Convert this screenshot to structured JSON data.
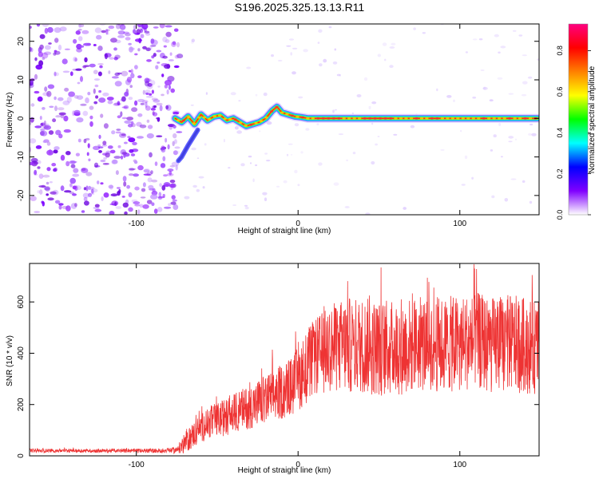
{
  "title": "S196.2025.325.13.13.R11",
  "colors": {
    "snr_line": "#ee3333",
    "ridge": "#ff2222",
    "noise": "#8a2be2"
  },
  "chart_data": [
    {
      "type": "heatmap",
      "xlabel": "Height of straight line (km)",
      "ylabel": "Frequency (Hz)",
      "xlim": [
        -166,
        149
      ],
      "ylim": [
        -25,
        24.5
      ],
      "x_ticks": [
        {
          "value": -100,
          "label": "-100"
        },
        {
          "value": 0,
          "label": "0"
        },
        {
          "value": 100,
          "label": "100"
        }
      ],
      "y_ticks": [
        {
          "value": 20,
          "label": "20"
        },
        {
          "value": 10,
          "label": "10"
        },
        {
          "value": 0,
          "label": "0"
        },
        {
          "value": -10,
          "label": "-10"
        },
        {
          "value": -20,
          "label": "-20"
        }
      ],
      "colorbar": {
        "label": "Normalized spectral amplitude",
        "range": [
          0,
          0.93
        ],
        "ticks": [
          {
            "value": 0.0,
            "label": "0.0"
          },
          {
            "value": 0.2,
            "label": "0.2"
          },
          {
            "value": 0.4,
            "label": "0.4"
          },
          {
            "value": 0.6,
            "label": "0.6"
          },
          {
            "value": 0.8,
            "label": "0.8"
          }
        ],
        "stops": [
          "#ffffff",
          "#8000ff",
          "#0000ff",
          "#00ffff",
          "#00ff00",
          "#ffff00",
          "#ff8000",
          "#ff0000",
          "#ff0080"
        ]
      },
      "noise_region_x": [
        -166,
        -76
      ],
      "ridge": {
        "x": [
          -76,
          -72,
          -68,
          -64,
          -60,
          -56,
          -52,
          -48,
          -44,
          -40,
          -36,
          -32,
          -28,
          -24,
          -20,
          -16,
          -13,
          -10,
          -6,
          -2,
          2,
          6,
          10,
          30,
          60,
          90,
          120,
          148
        ],
        "y": [
          0,
          -1,
          0.5,
          -1.5,
          1,
          -0.5,
          0.5,
          0.8,
          -0.5,
          0,
          -1,
          -2,
          -1.5,
          -1,
          0,
          2,
          3,
          1.5,
          1,
          0.5,
          0.3,
          0,
          0,
          0,
          0,
          0,
          0,
          0
        ]
      },
      "tail": {
        "x": [
          -62,
          -68,
          -72,
          -74
        ],
        "y": [
          -3,
          -7,
          -10,
          -11
        ]
      }
    },
    {
      "type": "line",
      "xlabel": "Height of straight line (km)",
      "ylabel": "SNR (10 * v/v)",
      "xlim": [
        -166,
        149
      ],
      "ylim": [
        0,
        750
      ],
      "x_ticks": [
        {
          "value": -100,
          "label": "-100"
        },
        {
          "value": 0,
          "label": "0"
        },
        {
          "value": 100,
          "label": "100"
        }
      ],
      "y_ticks": [
        {
          "value": 0,
          "label": "0"
        },
        {
          "value": 200,
          "label": "200"
        },
        {
          "value": 400,
          "label": "400"
        },
        {
          "value": 600,
          "label": "600"
        }
      ],
      "series": [
        {
          "name": "SNR",
          "x": [
            -166,
            -140,
            -110,
            -85,
            -75,
            -70,
            -65,
            -60,
            -55,
            -50,
            -45,
            -40,
            -35,
            -30,
            -25,
            -20,
            -15,
            -10,
            -5,
            0,
            5,
            10,
            15,
            20,
            25,
            30,
            40,
            50,
            60,
            70,
            80,
            90,
            100,
            110,
            120,
            130,
            140,
            149
          ],
          "y_mean": [
            20,
            20,
            20,
            20,
            22,
            50,
            80,
            110,
            130,
            140,
            150,
            165,
            180,
            190,
            205,
            220,
            235,
            250,
            265,
            300,
            345,
            380,
            400,
            420,
            425,
            430,
            430,
            420,
            420,
            430,
            440,
            430,
            440,
            450,
            430,
            440,
            430,
            420
          ],
          "y_spread": [
            8,
            8,
            8,
            10,
            14,
            45,
            55,
            65,
            70,
            75,
            80,
            85,
            90,
            95,
            100,
            110,
            115,
            120,
            130,
            140,
            160,
            170,
            180,
            190,
            200,
            210,
            210,
            210,
            210,
            210,
            210,
            210,
            210,
            210,
            210,
            210,
            210,
            200
          ],
          "peak": {
            "x": 109,
            "y": 730
          }
        }
      ]
    }
  ]
}
